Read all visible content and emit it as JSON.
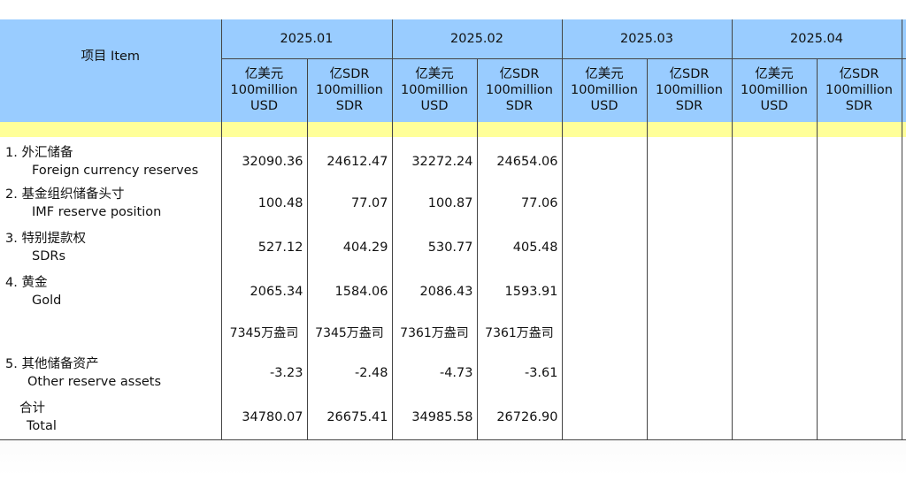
{
  "header": {
    "item_label": "项目  Item",
    "periods": [
      "2025.01",
      "2025.02",
      "2025.03",
      "2025.04"
    ],
    "unit_usd": "亿美元\n100million\nUSD",
    "unit_sdr": "亿SDR\n100million\nSDR"
  },
  "rows": [
    {
      "label_cn": "1.  外汇储备",
      "label_en": "Foreign currency reserves",
      "values": [
        "32090.36",
        "24612.47",
        "32272.24",
        "24654.06",
        "",
        "",
        "",
        ""
      ]
    },
    {
      "label_cn": "2.  基金组织储备头寸",
      "label_en": "IMF reserve position",
      "values": [
        "100.48",
        "77.07",
        "100.87",
        "77.06",
        "",
        "",
        "",
        ""
      ]
    },
    {
      "label_cn": "3.  特别提款权",
      "label_en": "SDRs",
      "values": [
        "527.12",
        "404.29",
        "530.77",
        "405.48",
        "",
        "",
        "",
        ""
      ]
    },
    {
      "label_cn": "4.  黄金",
      "label_en": "Gold",
      "values": [
        "2065.34",
        "1584.06",
        "2086.43",
        "1593.91",
        "",
        "",
        "",
        ""
      ]
    },
    {
      "label_cn": "",
      "label_en": "",
      "values": [
        "7345万盎司",
        "7345万盎司",
        "7361万盎司",
        "7361万盎司",
        "",
        "",
        "",
        ""
      ]
    },
    {
      "label_cn": "5.  其他储备资产",
      "label_en": "Other reserve assets",
      "values": [
        "-3.23",
        "-2.48",
        "-4.73",
        "-3.61",
        "",
        "",
        "",
        ""
      ]
    },
    {
      "label_cn": "合计",
      "label_en": "Total",
      "values": [
        "34780.07",
        "26675.41",
        "34985.58",
        "26726.90",
        "",
        "",
        "",
        ""
      ]
    }
  ]
}
